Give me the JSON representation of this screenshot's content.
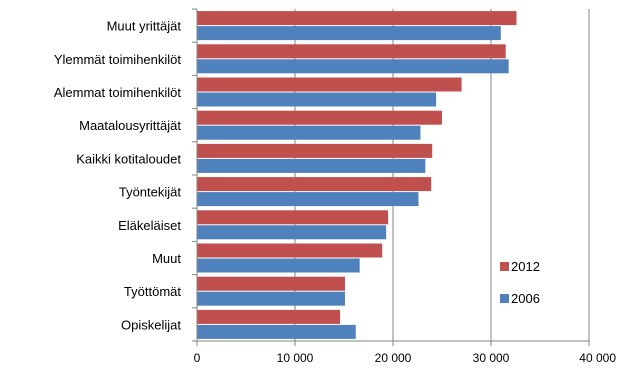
{
  "chart_data": {
    "type": "bar",
    "orientation": "horizontal",
    "categories": [
      "Muut yrittäjät",
      "Ylemmät toimihenkilöt",
      "Alemmat toimihenkilöt",
      "Maatalousyrittäjät",
      "Kaikki kotitaloudet",
      "Työntekijät",
      "Eläkeläiset",
      "Muut",
      "Työttömät",
      "Opiskelijat"
    ],
    "series": [
      {
        "name": "2012",
        "color": "#c0504d",
        "values": [
          32600,
          31500,
          27000,
          25000,
          24000,
          23900,
          19500,
          18900,
          15100,
          14600
        ]
      },
      {
        "name": "2006",
        "color": "#4f81bd",
        "values": [
          31000,
          31800,
          24400,
          22800,
          23300,
          22600,
          19300,
          16600,
          15100,
          16200
        ]
      }
    ],
    "xlim": [
      0,
      40000
    ],
    "xticks": [
      0,
      10000,
      20000,
      30000,
      40000
    ],
    "xtick_labels": [
      "0",
      "10 000",
      "20 000",
      "30 000",
      "40 000"
    ],
    "grid": "vertical",
    "legend_position": "right-bottom",
    "title": "",
    "xlabel": "",
    "ylabel": ""
  }
}
